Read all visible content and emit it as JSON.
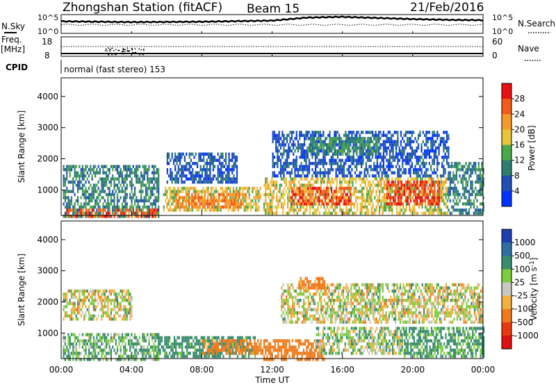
{
  "header": {
    "station": "Zhongshan Station (fitACF)",
    "beam": "Beam 15",
    "date": "21/Feb/2016"
  },
  "summary": {
    "nsky_label": "N.Sky",
    "nsearch_label": "N.Search",
    "nsky_ticks": [
      "10^5",
      "10^0"
    ],
    "nsearch_ticks": [
      "10^5",
      "10^0"
    ],
    "freq_label": "Freq.",
    "freq_unit": "[MHz]",
    "freq_ticks": [
      "18",
      "8"
    ],
    "nave_label": "Nave",
    "nave_ticks": [
      "60",
      "0"
    ],
    "cpid_label": "CPID",
    "cpid_text": "normal (fast stereo) 153"
  },
  "x_axis": {
    "label": "Time UT",
    "ticks": [
      "00:00",
      "04:00",
      "08:00",
      "12:00",
      "16:00",
      "20:00",
      "00:00"
    ]
  },
  "power_panel": {
    "ylabel": "Slant Range [km]",
    "yticks": [
      "1000",
      "2000",
      "3000",
      "4000"
    ],
    "cbar_label": "Power [dB]",
    "cbar_ticks": [
      "4",
      "8",
      "12",
      "16",
      "20",
      "24",
      "28"
    ],
    "cbar_colors": [
      "#0033ff",
      "#1f4fb3",
      "#2e7d6e",
      "#4ca64c",
      "#e8c43a",
      "#f59a2a",
      "#f25c1a",
      "#e81010"
    ]
  },
  "velocity_panel": {
    "ylabel": "Slant Range [km]",
    "yticks": [
      "1000",
      "2000",
      "3000",
      "4000"
    ],
    "cbar_label": "Velocity [m s",
    "cbar_label_sup": "-1",
    "cbar_label_end": "]",
    "cbar_ticks": [
      "1000",
      "500",
      "100",
      "25",
      "-25",
      "-100",
      "-500",
      "-1000"
    ],
    "cbar_colors": [
      "#1f3fb0",
      "#2e6fa0",
      "#3a8c6e",
      "#7ccc3c",
      "#c8c8c0",
      "#f2b040",
      "#f07a1a",
      "#e83a10",
      "#e01010"
    ]
  },
  "chart_data": [
    {
      "type": "line",
      "title": "",
      "xlabel": "Time UT",
      "series": [
        {
          "name": "N.Sky",
          "x_hours": [
            0,
            4,
            8,
            12,
            14,
            16,
            18,
            20,
            22,
            24
          ],
          "values_log10": [
            3.2,
            3.0,
            3.1,
            3.4,
            4.2,
            4.4,
            4.1,
            3.8,
            3.6,
            3.5
          ]
        }
      ]
    },
    {
      "type": "heatmap",
      "title": "",
      "ylabel": "Slant Range [km]",
      "xlabel": "Time UT",
      "xlim_hours": [
        0,
        24
      ],
      "ylim_km": [
        180,
        4600
      ],
      "colorbar": "Power [dB]",
      "regions": [
        {
          "t_start": 0.1,
          "t_end": 5.5,
          "r_min": 200,
          "r_max": 1900,
          "dB": 10
        },
        {
          "t_start": 0.3,
          "t_end": 5.5,
          "r_min": 200,
          "r_max": 500,
          "dB": 26
        },
        {
          "t_start": 5.8,
          "t_end": 11.3,
          "r_min": 400,
          "r_max": 1200,
          "dB": 18
        },
        {
          "t_start": 6.5,
          "t_end": 10.5,
          "r_min": 500,
          "r_max": 1000,
          "dB": 24
        },
        {
          "t_start": 6.0,
          "t_end": 10.0,
          "r_min": 1300,
          "r_max": 2300,
          "dB": 6
        },
        {
          "t_start": 11.5,
          "t_end": 22.0,
          "r_min": 300,
          "r_max": 1500,
          "dB": 18
        },
        {
          "t_start": 13.0,
          "t_end": 16.5,
          "r_min": 600,
          "r_max": 1200,
          "dB": 27
        },
        {
          "t_start": 18.5,
          "t_end": 21.5,
          "r_min": 600,
          "r_max": 1400,
          "dB": 28
        },
        {
          "t_start": 12.0,
          "t_end": 22.0,
          "r_min": 1500,
          "r_max": 3000,
          "dB": 6
        },
        {
          "t_start": 14.0,
          "t_end": 18.0,
          "r_min": 2200,
          "r_max": 2800,
          "dB": 12
        },
        {
          "t_start": 22.0,
          "t_end": 24.0,
          "r_min": 300,
          "r_max": 2000,
          "dB": 10
        }
      ]
    },
    {
      "type": "heatmap",
      "title": "",
      "ylabel": "Slant Range [km]",
      "xlabel": "Time UT",
      "xlim_hours": [
        0,
        24
      ],
      "ylim_km": [
        180,
        4600
      ],
      "colorbar": "Velocity [m s-1]",
      "regions": [
        {
          "t_start": 0.1,
          "t_end": 5.5,
          "r_min": 200,
          "r_max": 1100,
          "v": 100
        },
        {
          "t_start": 0.1,
          "t_end": 4.0,
          "r_min": 1500,
          "r_max": 2500,
          "v": 0
        },
        {
          "t_start": 5.5,
          "t_end": 11.0,
          "r_min": 300,
          "r_max": 1000,
          "v": 200
        },
        {
          "t_start": 8.0,
          "t_end": 11.5,
          "r_min": 400,
          "r_max": 900,
          "v": -200
        },
        {
          "t_start": 11.5,
          "t_end": 15.0,
          "r_min": 200,
          "r_max": 900,
          "v": -250
        },
        {
          "t_start": 14.5,
          "t_end": 19.5,
          "r_min": 400,
          "r_max": 1300,
          "v": 50
        },
        {
          "t_start": 19.5,
          "t_end": 24.0,
          "r_min": 300,
          "r_max": 1300,
          "v": 150
        },
        {
          "t_start": 12.5,
          "t_end": 24.0,
          "r_min": 1400,
          "r_max": 2700,
          "v": 0
        },
        {
          "t_start": 13.5,
          "t_end": 15.0,
          "r_min": 2500,
          "r_max": 2900,
          "v": -200
        }
      ]
    }
  ]
}
